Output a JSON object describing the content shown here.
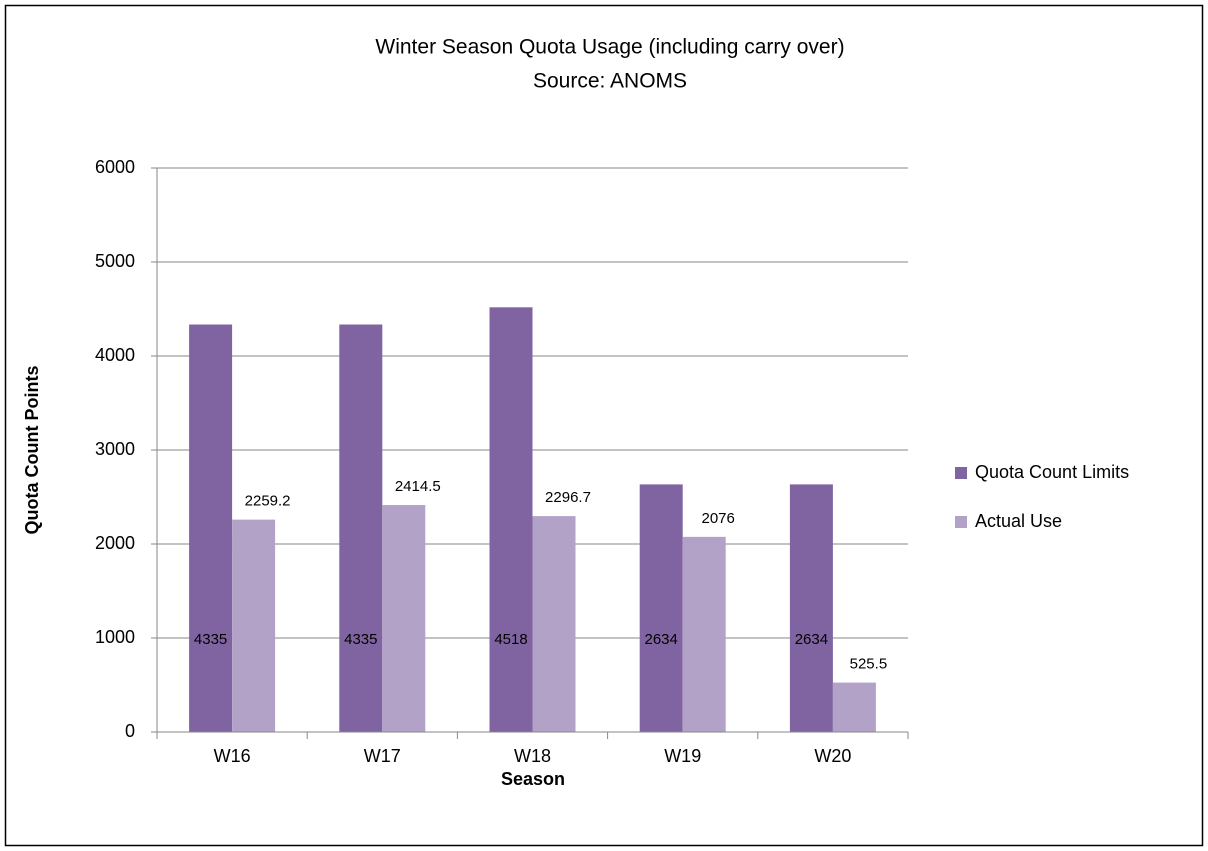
{
  "chart_data": {
    "type": "bar",
    "title": "Winter Season Quota Usage (including carry over)",
    "subtitle": "Source: ANOMS",
    "x_label": "Season",
    "y_label": "Quota Count Points",
    "categories": [
      "W16",
      "W17",
      "W18",
      "W19",
      "W20"
    ],
    "series": [
      {
        "name": "Quota Count Limits",
        "color": "#8064a2",
        "values": [
          4335,
          4335,
          4518,
          2634,
          2634
        ]
      },
      {
        "name": "Actual Use",
        "color": "#b3a2c7",
        "values": [
          2259.2,
          2414.5,
          2296.7,
          2076,
          525.5
        ]
      }
    ],
    "ylim": [
      0,
      6000
    ],
    "yticks": [
      0,
      1000,
      2000,
      3000,
      4000,
      5000,
      6000
    ],
    "grid": true,
    "legend": "right"
  }
}
